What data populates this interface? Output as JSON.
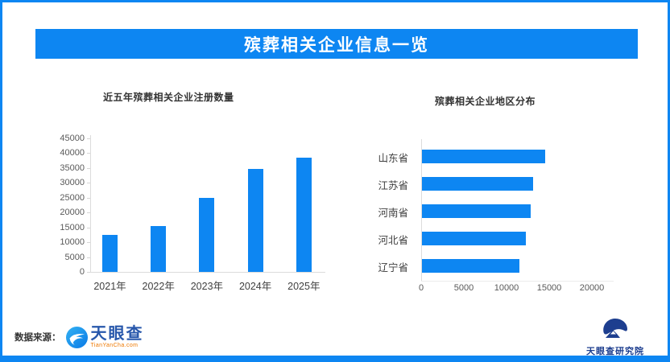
{
  "banner": {
    "title": "殡葬相关企业信息一览"
  },
  "chart_data": [
    {
      "type": "bar",
      "orientation": "vertical",
      "title": "近五年殡葬相关企业注册数量",
      "categories": [
        "2021年",
        "2022年",
        "2023年",
        "2024年",
        "2025年"
      ],
      "values": [
        12500,
        15500,
        25000,
        34500,
        38500
      ],
      "yticks": [
        0,
        5000,
        10000,
        15000,
        20000,
        25000,
        30000,
        35000,
        40000,
        45000
      ],
      "ylim": [
        0,
        45000
      ],
      "xlabel": "",
      "ylabel": "",
      "grid": false,
      "legend": "none",
      "bar_color": "#0d86f2"
    },
    {
      "type": "bar",
      "orientation": "horizontal",
      "title": "殡葬相关企业地区分布",
      "categories": [
        "山东省",
        "江苏省",
        "河南省",
        "河北省",
        "辽宁省"
      ],
      "values": [
        14400,
        13000,
        12700,
        12200,
        11400
      ],
      "xticks": [
        0,
        5000,
        10000,
        15000,
        20000
      ],
      "xlim": [
        0,
        22500
      ],
      "xlabel": "",
      "ylabel": "",
      "grid": false,
      "legend": "none",
      "bar_color": "#0d86f2"
    }
  ],
  "footer": {
    "source_label": "数据来源：",
    "logo_text": "天眼查",
    "logo_domain": "TianYanCha.com",
    "institute_text": "天眼查研究院"
  },
  "colors": {
    "brand_blue": "#0d86f2",
    "logo_blue": "#2757ab",
    "logo_navy": "#1d3e8f",
    "domain_orange": "#ee7800"
  }
}
